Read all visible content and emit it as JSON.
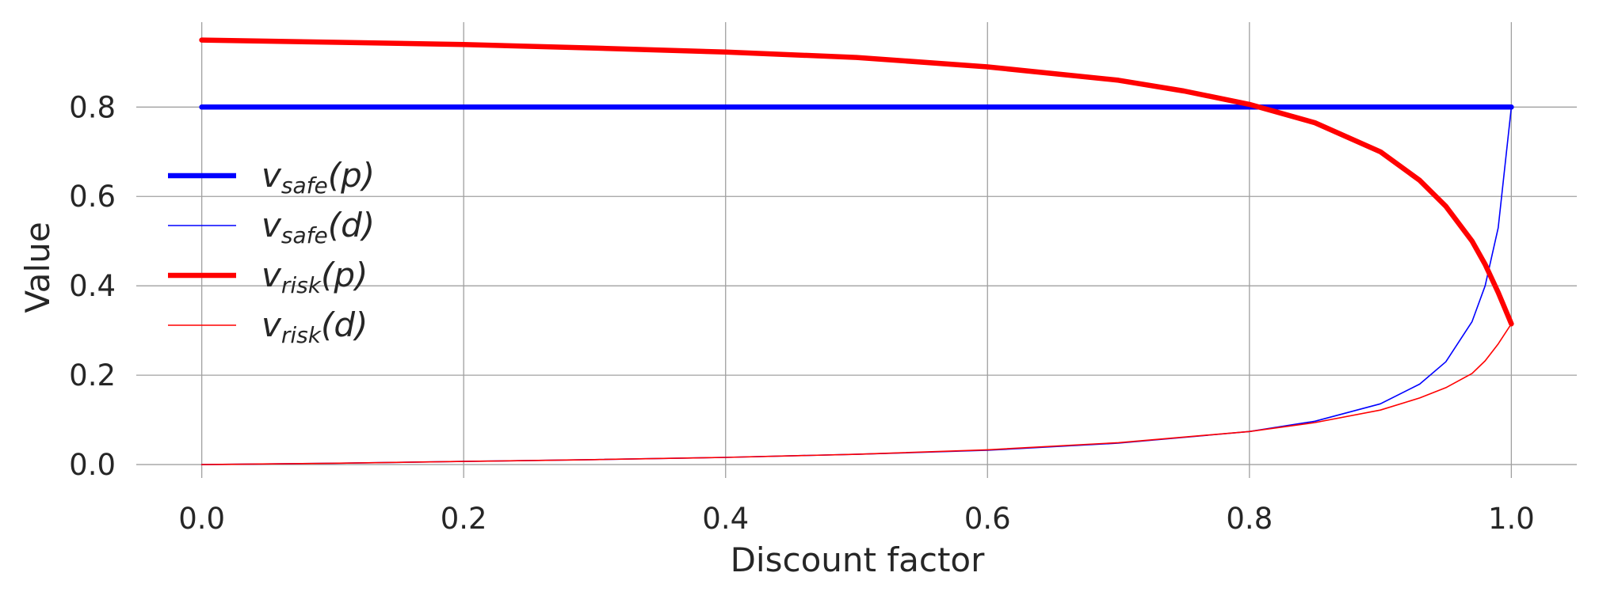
{
  "chart_data": {
    "type": "line",
    "title": "",
    "xlabel": "Discount factor",
    "ylabel": "Value",
    "xlim": [
      -0.05,
      1.05
    ],
    "ylim": [
      -0.03,
      0.99
    ],
    "x_ticks": [
      "0.0",
      "0.2",
      "0.4",
      "0.6",
      "0.8",
      "1.0"
    ],
    "y_ticks": [
      "0.0",
      "0.2",
      "0.4",
      "0.6",
      "0.8"
    ],
    "grid": true,
    "legend_position": "center-left",
    "series": [
      {
        "name": "v_safe(p)",
        "symbol": "v",
        "subscript": "safe",
        "arg": "(p)",
        "color": "#0000ff",
        "weight": "thick",
        "x": [
          0.0,
          1.0
        ],
        "y": [
          0.8,
          0.8
        ]
      },
      {
        "name": "v_safe(d)",
        "symbol": "v",
        "subscript": "safe",
        "arg": "(d)",
        "color": "#0000ff",
        "weight": "thin",
        "x": [
          0.0,
          0.1,
          0.2,
          0.3,
          0.4,
          0.5,
          0.6,
          0.7,
          0.8,
          0.85,
          0.9,
          0.93,
          0.95,
          0.97,
          0.98,
          0.99,
          1.0
        ],
        "y": [
          0.0,
          0.003,
          0.007,
          0.011,
          0.016,
          0.023,
          0.032,
          0.048,
          0.074,
          0.097,
          0.136,
          0.18,
          0.23,
          0.32,
          0.4,
          0.53,
          0.8
        ]
      },
      {
        "name": "v_risk(p)",
        "symbol": "v",
        "subscript": "risk",
        "arg": "(p)",
        "color": "#ff0000",
        "weight": "thick",
        "x": [
          0.0,
          0.1,
          0.2,
          0.3,
          0.4,
          0.5,
          0.6,
          0.7,
          0.75,
          0.8,
          0.85,
          0.9,
          0.93,
          0.95,
          0.97,
          0.98,
          0.99,
          1.0
        ],
        "y": [
          0.95,
          0.945,
          0.94,
          0.932,
          0.923,
          0.911,
          0.89,
          0.86,
          0.836,
          0.806,
          0.765,
          0.7,
          0.636,
          0.578,
          0.5,
          0.448,
          0.385,
          0.315
        ]
      },
      {
        "name": "v_risk(d)",
        "symbol": "v",
        "subscript": "risk",
        "arg": "(d)",
        "color": "#ff0000",
        "weight": "thin",
        "x": [
          0.0,
          0.1,
          0.2,
          0.3,
          0.4,
          0.5,
          0.6,
          0.7,
          0.8,
          0.85,
          0.9,
          0.93,
          0.95,
          0.97,
          0.98,
          0.99,
          1.0
        ],
        "y": [
          0.0,
          0.003,
          0.007,
          0.011,
          0.016,
          0.023,
          0.033,
          0.049,
          0.074,
          0.094,
          0.122,
          0.149,
          0.172,
          0.204,
          0.232,
          0.27,
          0.315
        ]
      }
    ]
  }
}
